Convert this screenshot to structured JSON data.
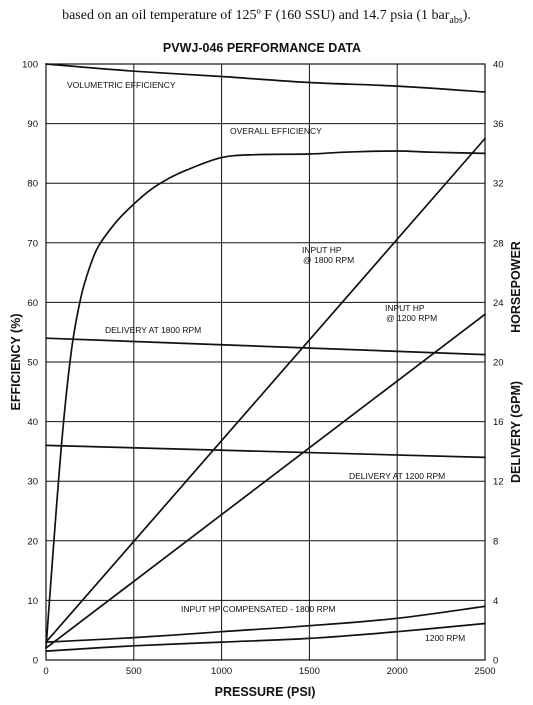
{
  "caption": {
    "text_main": "based on an oil temperature of 125º F (160 SSU) and 14.7 psia (1 bar",
    "text_sub": "abs",
    "text_end": ")."
  },
  "chart_data": {
    "type": "line",
    "title": "PVWJ-046 PERFORMANCE DATA",
    "xlabel": "PRESSURE (PSI)",
    "ylabel_left": "EFFICIENCY (%)",
    "ylabel_right_top": "HORSEPOWER",
    "ylabel_right_bottom": "DELIVERY (GPM)",
    "xlim": [
      0,
      2500
    ],
    "ylim_left": [
      0,
      100
    ],
    "ylim_right": [
      0,
      40
    ],
    "x_ticks": [
      "0",
      "500",
      "1000",
      "1500",
      "2000",
      "2500"
    ],
    "x_tick_values": [
      0,
      500,
      1000,
      1500,
      2000,
      2500
    ],
    "y_left_ticks": [
      "0",
      "10",
      "20",
      "30",
      "40",
      "50",
      "60",
      "70",
      "80",
      "90",
      "100"
    ],
    "y_left_tick_values": [
      0,
      10,
      20,
      30,
      40,
      50,
      60,
      70,
      80,
      90,
      100
    ],
    "y_right_ticks": [
      "0",
      "4",
      "8",
      "12",
      "16",
      "20",
      "24",
      "28",
      "32",
      "36",
      "40"
    ],
    "y_right_tick_values": [
      0,
      4,
      8,
      12,
      16,
      20,
      24,
      28,
      32,
      36,
      40
    ],
    "grid": true,
    "series": [
      {
        "name": "VOLUMETRIC EFFICIENCY",
        "axis": "left",
        "x": [
          0,
          500,
          1000,
          1500,
          2000,
          2500
        ],
        "y": [
          100,
          98.8,
          97.9,
          96.9,
          96.3,
          95.3
        ]
      },
      {
        "name": "OVERALL EFFICIENCY",
        "axis": "left",
        "x": [
          0,
          50,
          100,
          150,
          200,
          250,
          300,
          400,
          500,
          600,
          700,
          800,
          1000,
          1200,
          1500,
          1700,
          2000,
          2200,
          2500
        ],
        "y": [
          2,
          22,
          40,
          53,
          61,
          66,
          69.5,
          73.5,
          76.5,
          79,
          80.8,
          82.2,
          84.3,
          84.8,
          84.9,
          85.2,
          85.4,
          85.2,
          85
        ]
      },
      {
        "name": "INPUT HP @ 1800 RPM",
        "axis": "right",
        "x": [
          0,
          2500
        ],
        "y": [
          1.2,
          35
        ]
      },
      {
        "name": "INPUT HP @ 1200 RPM",
        "axis": "right",
        "x": [
          0,
          2500
        ],
        "y": [
          0.8,
          23.2
        ]
      },
      {
        "name": "DELIVERY AT 1800 RPM",
        "axis": "right",
        "x": [
          0,
          2500
        ],
        "y": [
          21.6,
          20.5
        ]
      },
      {
        "name": "DELIVERY AT 1200 RPM",
        "axis": "right",
        "x": [
          0,
          2500
        ],
        "y": [
          14.4,
          13.6
        ]
      },
      {
        "name": "INPUT HP COMPENSATED - 1800 RPM",
        "axis": "right",
        "x": [
          0,
          500,
          1000,
          1500,
          2000,
          2500
        ],
        "y": [
          1.2,
          1.5,
          1.9,
          2.3,
          2.8,
          3.6
        ]
      },
      {
        "name": "1200 RPM",
        "axis": "right",
        "x": [
          0,
          500,
          1000,
          1500,
          2000,
          2500
        ],
        "y": [
          0.6,
          0.95,
          1.2,
          1.45,
          1.9,
          2.45
        ]
      }
    ]
  }
}
